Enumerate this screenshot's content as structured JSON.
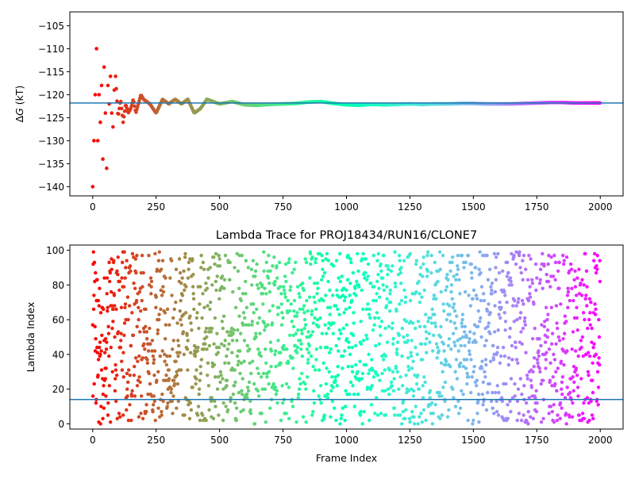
{
  "chart_data": [
    {
      "type": "scatter",
      "title": "",
      "xlabel": "",
      "ylabel": "ΔG (kT)",
      "ylabel_parts": {
        "delta": "Δ",
        "symbol": "G",
        "unit": " (kT)"
      },
      "xlim": [
        -90,
        2090
      ],
      "ylim": [
        -142,
        -102
      ],
      "xticks": [
        0,
        250,
        500,
        750,
        1000,
        1250,
        1500,
        1750,
        2000
      ],
      "yticks": [
        -105,
        -110,
        -115,
        -120,
        -125,
        -130,
        -135,
        -140
      ],
      "reference_line": -121.8,
      "reference_line_color": "#1f77b4",
      "color_map": "rainbow (reversed: red at frame 0, violet at frame 2000)",
      "frame_count": 2000,
      "series": [
        {
          "description": "cumulative free-energy estimate per frame",
          "points": [
            [
              0,
              -140
            ],
            [
              5,
              -130
            ],
            [
              10,
              -120
            ],
            [
              15,
              -110
            ],
            [
              20,
              -130
            ],
            [
              25,
              -120
            ],
            [
              30,
              -126
            ],
            [
              35,
              -118
            ],
            [
              40,
              -134
            ],
            [
              45,
              -114
            ],
            [
              50,
              -124
            ],
            [
              55,
              -136
            ],
            [
              60,
              -118
            ],
            [
              65,
              -122
            ],
            [
              70,
              -116
            ],
            [
              75,
              -124
            ],
            [
              80,
              -127
            ],
            [
              85,
              -119
            ],
            [
              90,
              -116
            ],
            [
              100,
              -125
            ],
            [
              110,
              -121
            ],
            [
              120,
              -126
            ],
            [
              130,
              -122
            ],
            [
              140,
              -124
            ],
            [
              150,
              -123
            ],
            [
              160,
              -121
            ],
            [
              170,
              -124
            ],
            [
              180,
              -122
            ],
            [
              190,
              -120
            ],
            [
              200,
              -121
            ],
            [
              225,
              -122
            ],
            [
              250,
              -124
            ],
            [
              275,
              -121
            ],
            [
              300,
              -122
            ],
            [
              325,
              -121
            ],
            [
              350,
              -122
            ],
            [
              375,
              -121
            ],
            [
              400,
              -124
            ],
            [
              425,
              -123
            ],
            [
              450,
              -121
            ],
            [
              500,
              -122
            ],
            [
              550,
              -121.5
            ],
            [
              600,
              -122.2
            ],
            [
              650,
              -122.3
            ],
            [
              700,
              -122.1
            ],
            [
              750,
              -122.0
            ],
            [
              800,
              -121.9
            ],
            [
              850,
              -121.6
            ],
            [
              900,
              -121.5
            ],
            [
              950,
              -121.9
            ],
            [
              1000,
              -122.2
            ],
            [
              1050,
              -122.3
            ],
            [
              1100,
              -122.1
            ],
            [
              1150,
              -122.2
            ],
            [
              1200,
              -122.1
            ],
            [
              1250,
              -122.0
            ],
            [
              1300,
              -122.1
            ],
            [
              1350,
              -122.0
            ],
            [
              1400,
              -122.0
            ],
            [
              1450,
              -121.9
            ],
            [
              1500,
              -121.9
            ],
            [
              1550,
              -122.0
            ],
            [
              1600,
              -122.0
            ],
            [
              1650,
              -122.0
            ],
            [
              1700,
              -121.9
            ],
            [
              1750,
              -121.8
            ],
            [
              1800,
              -121.7
            ],
            [
              1850,
              -121.7
            ],
            [
              1900,
              -121.8
            ],
            [
              1950,
              -121.8
            ],
            [
              2000,
              -121.8
            ]
          ]
        }
      ]
    },
    {
      "type": "scatter",
      "title": "Lambda Trace for PROJ18434/RUN16/CLONE7",
      "xlabel": "Frame Index",
      "ylabel": "Lambda Index",
      "xlim": [
        -90,
        2090
      ],
      "ylim": [
        -3,
        103
      ],
      "xticks": [
        0,
        250,
        500,
        750,
        1000,
        1250,
        1500,
        1750,
        2000
      ],
      "yticks": [
        0,
        20,
        40,
        60,
        80,
        100
      ],
      "reference_line": 14,
      "reference_line_color": "#1f77b4",
      "color_map": "rainbow (reversed: red at frame 0, violet at frame 2000)",
      "lambda_range": [
        0,
        99
      ],
      "frame_count": 2000,
      "point_count": 2000,
      "series": [
        {
          "description": "lambda index visited at each frame (uniformly scattered across 0-99 over frames 0-2000)"
        }
      ]
    }
  ]
}
